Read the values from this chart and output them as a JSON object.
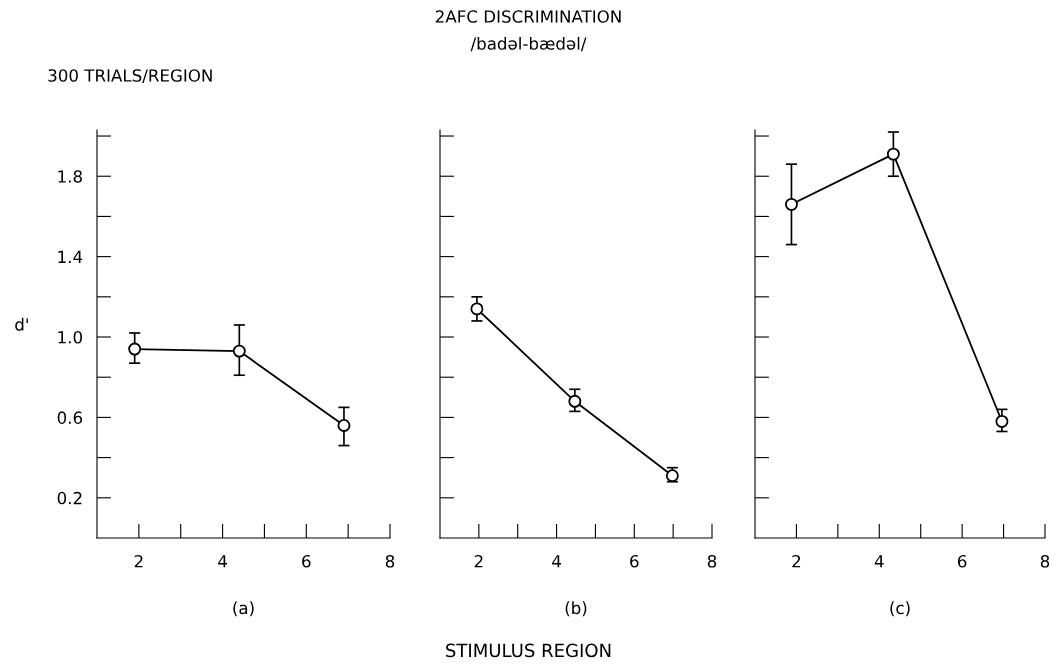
{
  "chart_data": [
    {
      "type": "line",
      "xlabel": "(a)",
      "ylabel": "d'",
      "annotations": [
        "300 TRIALS/REGION"
      ],
      "marker": "circle",
      "line_style": "solid",
      "x": [
        1.9,
        4.4,
        6.9
      ],
      "series": [
        {
          "color": "#000000",
          "values": [
            0.94,
            0.93,
            0.56
          ],
          "errors": [
            [
              0.87,
              1.02
            ],
            [
              0.81,
              1.06
            ],
            [
              0.46,
              0.65
            ]
          ]
        }
      ],
      "xlim": [
        1,
        8
      ],
      "xticks": [
        {
          "value": 2,
          "label": "2"
        },
        {
          "value": 3,
          "label": null
        },
        {
          "value": 4,
          "label": "4"
        },
        {
          "value": 5,
          "label": null
        },
        {
          "value": 6,
          "label": "6"
        },
        {
          "value": 7,
          "label": null
        },
        {
          "value": 8,
          "label": "8"
        }
      ],
      "ylim": [
        0,
        2.03
      ],
      "yticks": [
        {
          "value": 0.2,
          "label": "0.2"
        },
        {
          "value": 0.4,
          "label": null
        },
        {
          "value": 0.6,
          "label": "0.6"
        },
        {
          "value": 0.8,
          "label": null
        },
        {
          "value": 1.0,
          "label": "1.0"
        },
        {
          "value": 1.2,
          "label": null
        },
        {
          "value": 1.4,
          "label": "1.4"
        },
        {
          "value": 1.6,
          "label": null
        },
        {
          "value": 1.8,
          "label": "1.8"
        },
        {
          "value": 2.0,
          "label": null
        }
      ],
      "grid": false
    },
    {
      "type": "line",
      "title": "2AFC DISCRIMINATION",
      "subtitle": "/badəl-bædəl/",
      "xlabel": "(b)",
      "annotations": [
        "STIMULUS REGION"
      ],
      "marker": "circle",
      "line_style": "solid",
      "x": [
        1.95,
        4.47,
        6.98
      ],
      "series": [
        {
          "color": "#000000",
          "values": [
            1.14,
            0.68,
            0.31
          ],
          "errors": [
            [
              1.08,
              1.2
            ],
            [
              0.63,
              0.74
            ],
            [
              0.28,
              0.35
            ]
          ]
        }
      ],
      "xlim": [
        1,
        8
      ],
      "xticks": [
        {
          "value": 2,
          "label": "2"
        },
        {
          "value": 3,
          "label": null
        },
        {
          "value": 4,
          "label": "4"
        },
        {
          "value": 5,
          "label": null
        },
        {
          "value": 6,
          "label": "6"
        },
        {
          "value": 7,
          "label": null
        },
        {
          "value": 8,
          "label": "8"
        }
      ],
      "ylim": [
        0,
        2.03
      ],
      "yticks": [
        {
          "value": 0.2,
          "label": null
        },
        {
          "value": 0.4,
          "label": null
        },
        {
          "value": 0.6,
          "label": null
        },
        {
          "value": 0.8,
          "label": null
        },
        {
          "value": 1.0,
          "label": null
        },
        {
          "value": 1.2,
          "label": null
        },
        {
          "value": 1.4,
          "label": null
        },
        {
          "value": 1.6,
          "label": null
        },
        {
          "value": 1.8,
          "label": null
        },
        {
          "value": 2.0,
          "label": null
        }
      ],
      "tick_labels": "x",
      "grid": false
    },
    {
      "type": "line",
      "xlabel": "(c)",
      "marker": "circle",
      "line_style": "solid",
      "x": [
        1.88,
        4.34,
        6.96
      ],
      "series": [
        {
          "color": "#000000",
          "values": [
            1.66,
            1.91,
            0.58
          ],
          "errors": [
            [
              1.46,
              1.86
            ],
            [
              1.8,
              2.02
            ],
            [
              0.53,
              0.64
            ]
          ]
        }
      ],
      "xlim": [
        1,
        8
      ],
      "xticks": [
        {
          "value": 2,
          "label": "2"
        },
        {
          "value": 3,
          "label": null
        },
        {
          "value": 4,
          "label": "4"
        },
        {
          "value": 5,
          "label": null
        },
        {
          "value": 6,
          "label": "6"
        },
        {
          "value": 7,
          "label": null
        },
        {
          "value": 8,
          "label": "8"
        }
      ],
      "ylim": [
        0,
        2.03
      ],
      "yticks": [
        {
          "value": 0.2,
          "label": null
        },
        {
          "value": 0.4,
          "label": null
        },
        {
          "value": 0.6,
          "label": null
        },
        {
          "value": 0.8,
          "label": null
        },
        {
          "value": 1.0,
          "label": null
        },
        {
          "value": 1.2,
          "label": null
        },
        {
          "value": 1.4,
          "label": null
        },
        {
          "value": 1.6,
          "label": null
        },
        {
          "value": 1.8,
          "label": null
        },
        {
          "value": 2.0,
          "label": null
        }
      ],
      "tick_labels": "x",
      "grid": false
    }
  ]
}
